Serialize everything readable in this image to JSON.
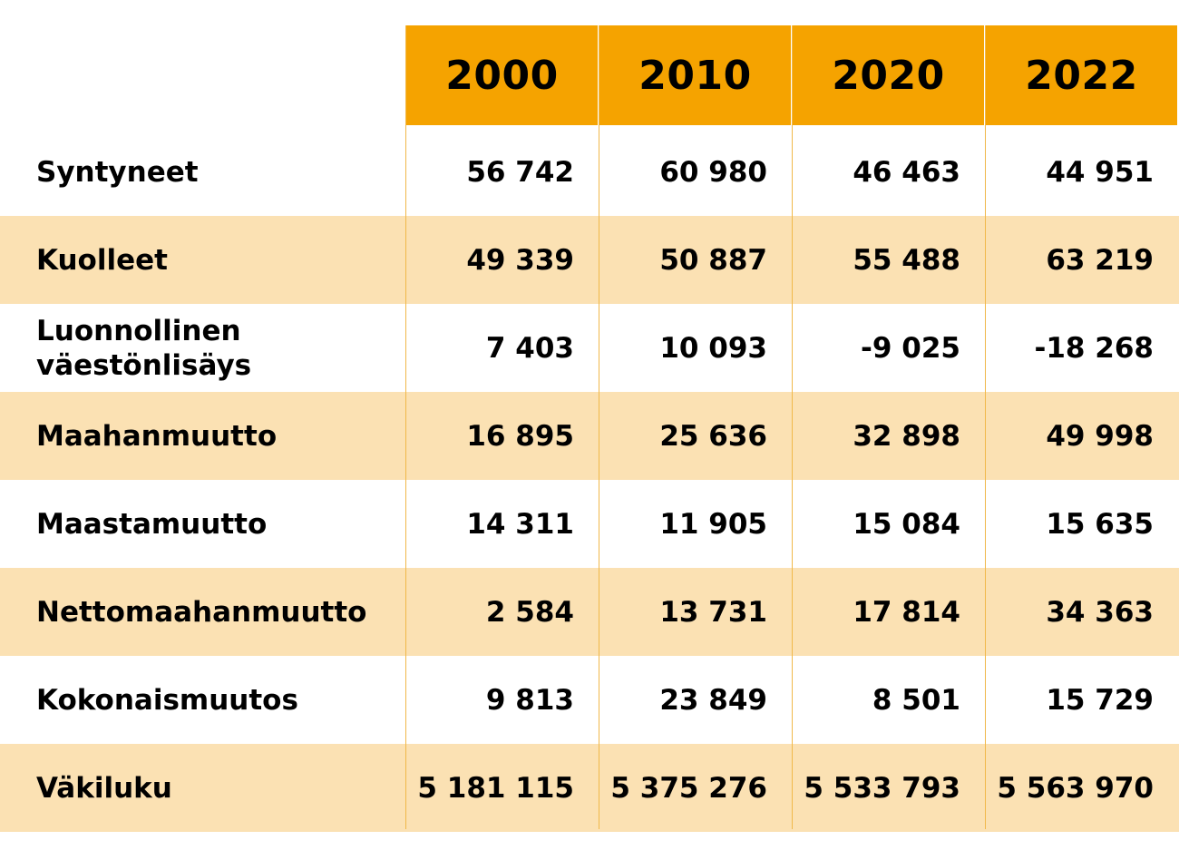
{
  "table": {
    "years": [
      "2000",
      "2010",
      "2020",
      "2022"
    ],
    "rows": [
      {
        "label": "Syntyneet",
        "values": [
          "56 742",
          "60 980",
          "46 463",
          "44 951"
        ]
      },
      {
        "label": "Kuolleet",
        "values": [
          "49 339",
          "50 887",
          "55 488",
          "63 219"
        ]
      },
      {
        "label": "Luonnollinen väestönlisäys",
        "values": [
          "7 403",
          "10 093",
          "-9 025",
          "-18 268"
        ]
      },
      {
        "label": "Maahanmuutto",
        "values": [
          "16 895",
          "25 636",
          "32 898",
          "49 998"
        ]
      },
      {
        "label": "Maastamuutto",
        "values": [
          "14 311",
          "11 905",
          "15 084",
          "15 635"
        ]
      },
      {
        "label": "Nettomaahanmuutto",
        "values": [
          "2 584",
          "13 731",
          "17 814",
          "34 363"
        ]
      },
      {
        "label": "Kokonaismuutos",
        "values": [
          "9 813",
          "23 849",
          "8 501",
          "15 729"
        ]
      },
      {
        "label": "Väkiluku",
        "values": [
          "5 181 115",
          "5 375 276",
          "5 533 793",
          "5 563 970"
        ]
      }
    ]
  },
  "colors": {
    "header": "#f5a300",
    "shaded_row": "#fbe1b3",
    "divider": "#f0b84a"
  }
}
